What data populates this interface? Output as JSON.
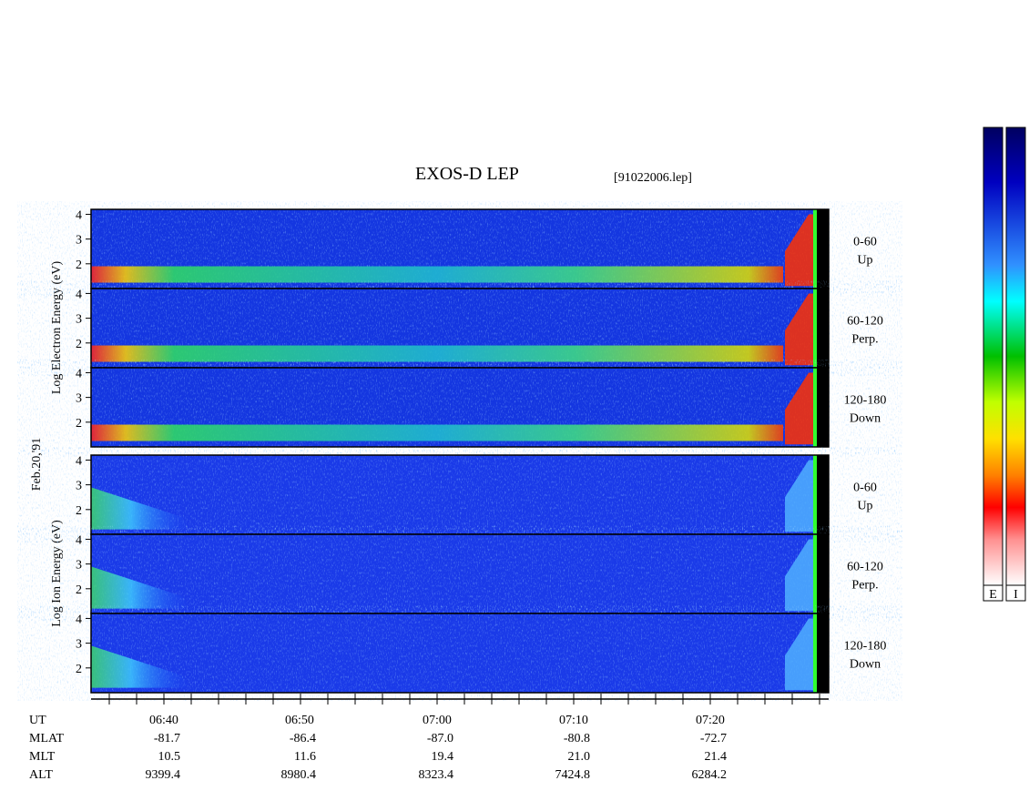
{
  "title": "EXOS-D LEP",
  "file": "[91022006.lep]",
  "date": "Feb.20,'91",
  "electron_label": "Log Electron Energy (eV)",
  "ion_label": "Log Ion Energy (eV)",
  "ylim": [
    1,
    4.2
  ],
  "yticks": [
    2,
    3,
    4
  ],
  "panels": [
    {
      "range": "0-60",
      "dir": "Up"
    },
    {
      "range": "60-120",
      "dir": "Perp."
    },
    {
      "range": "120-180",
      "dir": "Down"
    },
    {
      "range": "0-60",
      "dir": "Up"
    },
    {
      "range": "60-120",
      "dir": "Perp."
    },
    {
      "range": "120-180",
      "dir": "Down"
    }
  ],
  "ephemeris": {
    "labels": [
      "UT",
      "MLAT",
      "MLT",
      "ALT"
    ],
    "columns": [
      [
        "06:40",
        "-81.7",
        "10.5",
        "9399.4"
      ],
      [
        "06:50",
        "-86.4",
        "11.6",
        "8980.4"
      ],
      [
        "07:00",
        "-87.0",
        "19.4",
        "8323.4"
      ],
      [
        "07:10",
        "-80.8",
        "21.0",
        "7424.8"
      ],
      [
        "07:20",
        "-72.7",
        "21.4",
        "6284.2"
      ]
    ]
  },
  "colorbar_labels": [
    "E",
    "I"
  ]
}
